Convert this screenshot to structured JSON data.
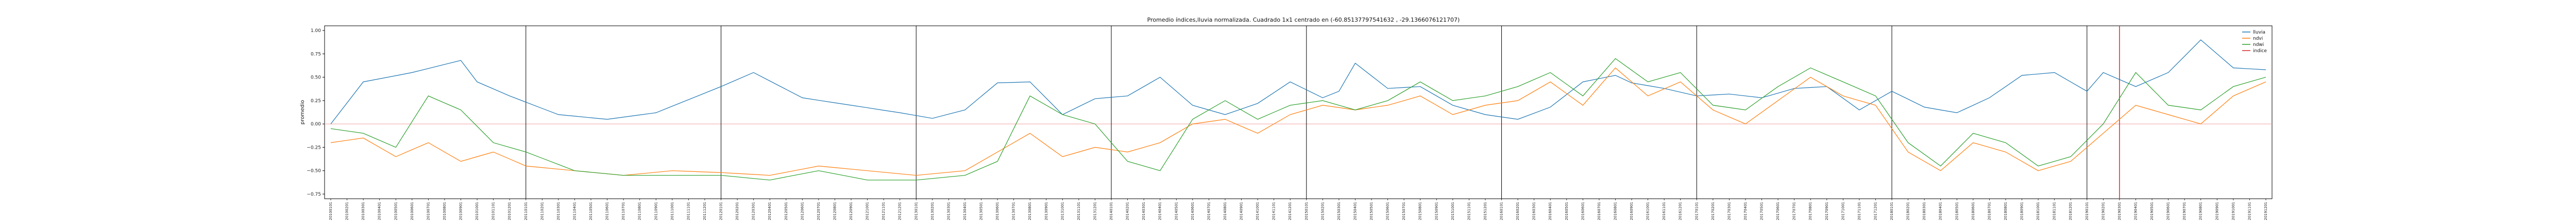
{
  "chart_data": {
    "type": "line",
    "title": "Promedio índices,lluvia normalizada. Cuadrado 1x1 centrado en (-60.85137797541632 , -29.1366076121707)",
    "xlabel": "",
    "ylabel": "promedio",
    "ylim": [
      -0.8,
      1.05
    ],
    "yticks": [
      -0.75,
      -0.5,
      -0.25,
      0.0,
      0.25,
      0.5,
      0.75,
      1.0
    ],
    "ytick_labels": [
      "−0.75",
      "−0.50",
      "−0.25",
      "0.00",
      "0.25",
      "0.50",
      "0.75",
      "1.00"
    ],
    "grid": false,
    "legend_position": "upper-right",
    "x_start": "2010-01",
    "x_end": "2019-12",
    "x_tick_step_months": 1,
    "vertical_lines": [
      "2011-01",
      "2012-01",
      "2013-01",
      "2014-01",
      "2015-01",
      "2016-01",
      "2017-01",
      "2018-01",
      "2019-01"
    ],
    "red_vertical_line": "2019-03",
    "zero_line": 0.0,
    "series": [
      {
        "name": "lluvia",
        "color": "#1f77b4",
        "anchors": [
          [
            "2010-01",
            0.0
          ],
          [
            "2010-03",
            0.45
          ],
          [
            "2010-06",
            0.55
          ],
          [
            "2010-09",
            0.68
          ],
          [
            "2010-10",
            0.45
          ],
          [
            "2010-12",
            0.3
          ],
          [
            "2011-03",
            0.1
          ],
          [
            "2011-06",
            0.05
          ],
          [
            "2011-09",
            0.12
          ],
          [
            "2012-01",
            0.4
          ],
          [
            "2012-03",
            0.55
          ],
          [
            "2012-06",
            0.28
          ],
          [
            "2012-09",
            0.2
          ],
          [
            "2012-12",
            0.12
          ],
          [
            "2013-02",
            0.06
          ],
          [
            "2013-04",
            0.15
          ],
          [
            "2013-06",
            0.44
          ],
          [
            "2013-08",
            0.45
          ],
          [
            "2013-10",
            0.1
          ],
          [
            "2013-12",
            0.27
          ],
          [
            "2014-02",
            0.3
          ],
          [
            "2014-04",
            0.5
          ],
          [
            "2014-06",
            0.2
          ],
          [
            "2014-08",
            0.1
          ],
          [
            "2014-10",
            0.22
          ],
          [
            "2014-12",
            0.45
          ],
          [
            "2015-02",
            0.28
          ],
          [
            "2015-03",
            0.35
          ],
          [
            "2015-04",
            0.65
          ],
          [
            "2015-06",
            0.38
          ],
          [
            "2015-08",
            0.4
          ],
          [
            "2015-10",
            0.2
          ],
          [
            "2015-12",
            0.1
          ],
          [
            "2016-02",
            0.05
          ],
          [
            "2016-04",
            0.18
          ],
          [
            "2016-06",
            0.45
          ],
          [
            "2016-08",
            0.52
          ],
          [
            "2016-09",
            0.44
          ],
          [
            "2016-11",
            0.38
          ],
          [
            "2017-01",
            0.3
          ],
          [
            "2017-03",
            0.32
          ],
          [
            "2017-05",
            0.28
          ],
          [
            "2017-07",
            0.38
          ],
          [
            "2017-09",
            0.4
          ],
          [
            "2017-11",
            0.15
          ],
          [
            "2018-01",
            0.35
          ],
          [
            "2018-03",
            0.18
          ],
          [
            "2018-05",
            0.12
          ],
          [
            "2018-07",
            0.28
          ],
          [
            "2018-09",
            0.52
          ],
          [
            "2018-11",
            0.55
          ],
          [
            "2019-01",
            0.35
          ],
          [
            "2019-02",
            0.55
          ],
          [
            "2019-04",
            0.4
          ],
          [
            "2019-06",
            0.55
          ],
          [
            "2019-08",
            0.9
          ],
          [
            "2019-10",
            0.6
          ],
          [
            "2019-12",
            0.58
          ]
        ]
      },
      {
        "name": "ndvi",
        "color": "#ff7f0e",
        "anchors": [
          [
            "2010-01",
            -0.2
          ],
          [
            "2010-03",
            -0.15
          ],
          [
            "2010-05",
            -0.35
          ],
          [
            "2010-07",
            -0.2
          ],
          [
            "2010-09",
            -0.4
          ],
          [
            "2010-11",
            -0.3
          ],
          [
            "2011-01",
            -0.45
          ],
          [
            "2011-04",
            -0.5
          ],
          [
            "2011-07",
            -0.55
          ],
          [
            "2011-10",
            -0.5
          ],
          [
            "2012-01",
            -0.52
          ],
          [
            "2012-04",
            -0.55
          ],
          [
            "2012-07",
            -0.45
          ],
          [
            "2012-10",
            -0.5
          ],
          [
            "2013-01",
            -0.55
          ],
          [
            "2013-04",
            -0.5
          ],
          [
            "2013-06",
            -0.3
          ],
          [
            "2013-08",
            -0.1
          ],
          [
            "2013-10",
            -0.35
          ],
          [
            "2013-12",
            -0.25
          ],
          [
            "2014-02",
            -0.3
          ],
          [
            "2014-04",
            -0.2
          ],
          [
            "2014-06",
            0.0
          ],
          [
            "2014-08",
            0.05
          ],
          [
            "2014-10",
            -0.1
          ],
          [
            "2014-12",
            0.1
          ],
          [
            "2015-02",
            0.2
          ],
          [
            "2015-04",
            0.15
          ],
          [
            "2015-06",
            0.2
          ],
          [
            "2015-08",
            0.3
          ],
          [
            "2015-10",
            0.1
          ],
          [
            "2015-12",
            0.2
          ],
          [
            "2016-02",
            0.25
          ],
          [
            "2016-04",
            0.45
          ],
          [
            "2016-06",
            0.2
          ],
          [
            "2016-08",
            0.6
          ],
          [
            "2016-10",
            0.3
          ],
          [
            "2016-12",
            0.45
          ],
          [
            "2017-02",
            0.15
          ],
          [
            "2017-04",
            0.0
          ],
          [
            "2017-06",
            0.25
          ],
          [
            "2017-08",
            0.5
          ],
          [
            "2017-10",
            0.3
          ],
          [
            "2017-12",
            0.2
          ],
          [
            "2018-02",
            -0.3
          ],
          [
            "2018-04",
            -0.5
          ],
          [
            "2018-06",
            -0.2
          ],
          [
            "2018-08",
            -0.3
          ],
          [
            "2018-10",
            -0.5
          ],
          [
            "2018-12",
            -0.4
          ],
          [
            "2019-02",
            -0.1
          ],
          [
            "2019-04",
            0.2
          ],
          [
            "2019-06",
            0.1
          ],
          [
            "2019-08",
            0.0
          ],
          [
            "2019-10",
            0.3
          ],
          [
            "2019-12",
            0.45
          ]
        ]
      },
      {
        "name": "ndwi",
        "color": "#2ca02c",
        "anchors": [
          [
            "2010-01",
            -0.05
          ],
          [
            "2010-03",
            -0.1
          ],
          [
            "2010-05",
            -0.25
          ],
          [
            "2010-07",
            0.3
          ],
          [
            "2010-09",
            0.15
          ],
          [
            "2010-11",
            -0.2
          ],
          [
            "2011-01",
            -0.3
          ],
          [
            "2011-04",
            -0.5
          ],
          [
            "2011-07",
            -0.55
          ],
          [
            "2011-10",
            -0.55
          ],
          [
            "2012-01",
            -0.55
          ],
          [
            "2012-04",
            -0.6
          ],
          [
            "2012-07",
            -0.5
          ],
          [
            "2012-10",
            -0.6
          ],
          [
            "2013-01",
            -0.6
          ],
          [
            "2013-04",
            -0.55
          ],
          [
            "2013-06",
            -0.4
          ],
          [
            "2013-08",
            0.3
          ],
          [
            "2013-10",
            0.1
          ],
          [
            "2013-12",
            0.0
          ],
          [
            "2014-02",
            -0.4
          ],
          [
            "2014-04",
            -0.5
          ],
          [
            "2014-06",
            0.05
          ],
          [
            "2014-08",
            0.25
          ],
          [
            "2014-10",
            0.05
          ],
          [
            "2014-12",
            0.2
          ],
          [
            "2015-02",
            0.25
          ],
          [
            "2015-04",
            0.15
          ],
          [
            "2015-06",
            0.25
          ],
          [
            "2015-08",
            0.45
          ],
          [
            "2015-10",
            0.25
          ],
          [
            "2015-12",
            0.3
          ],
          [
            "2016-02",
            0.4
          ],
          [
            "2016-04",
            0.55
          ],
          [
            "2016-06",
            0.3
          ],
          [
            "2016-08",
            0.7
          ],
          [
            "2016-10",
            0.45
          ],
          [
            "2016-12",
            0.55
          ],
          [
            "2017-02",
            0.2
          ],
          [
            "2017-04",
            0.15
          ],
          [
            "2017-06",
            0.4
          ],
          [
            "2017-08",
            0.6
          ],
          [
            "2017-10",
            0.45
          ],
          [
            "2017-12",
            0.3
          ],
          [
            "2018-02",
            -0.2
          ],
          [
            "2018-04",
            -0.45
          ],
          [
            "2018-06",
            -0.1
          ],
          [
            "2018-08",
            -0.2
          ],
          [
            "2018-10",
            -0.45
          ],
          [
            "2018-12",
            -0.35
          ],
          [
            "2019-02",
            0.0
          ],
          [
            "2019-04",
            0.55
          ],
          [
            "2019-06",
            0.2
          ],
          [
            "2019-08",
            0.15
          ],
          [
            "2019-10",
            0.4
          ],
          [
            "2019-12",
            0.5
          ]
        ]
      },
      {
        "name": "indice",
        "color": "#d62728",
        "anchors": []
      }
    ]
  }
}
